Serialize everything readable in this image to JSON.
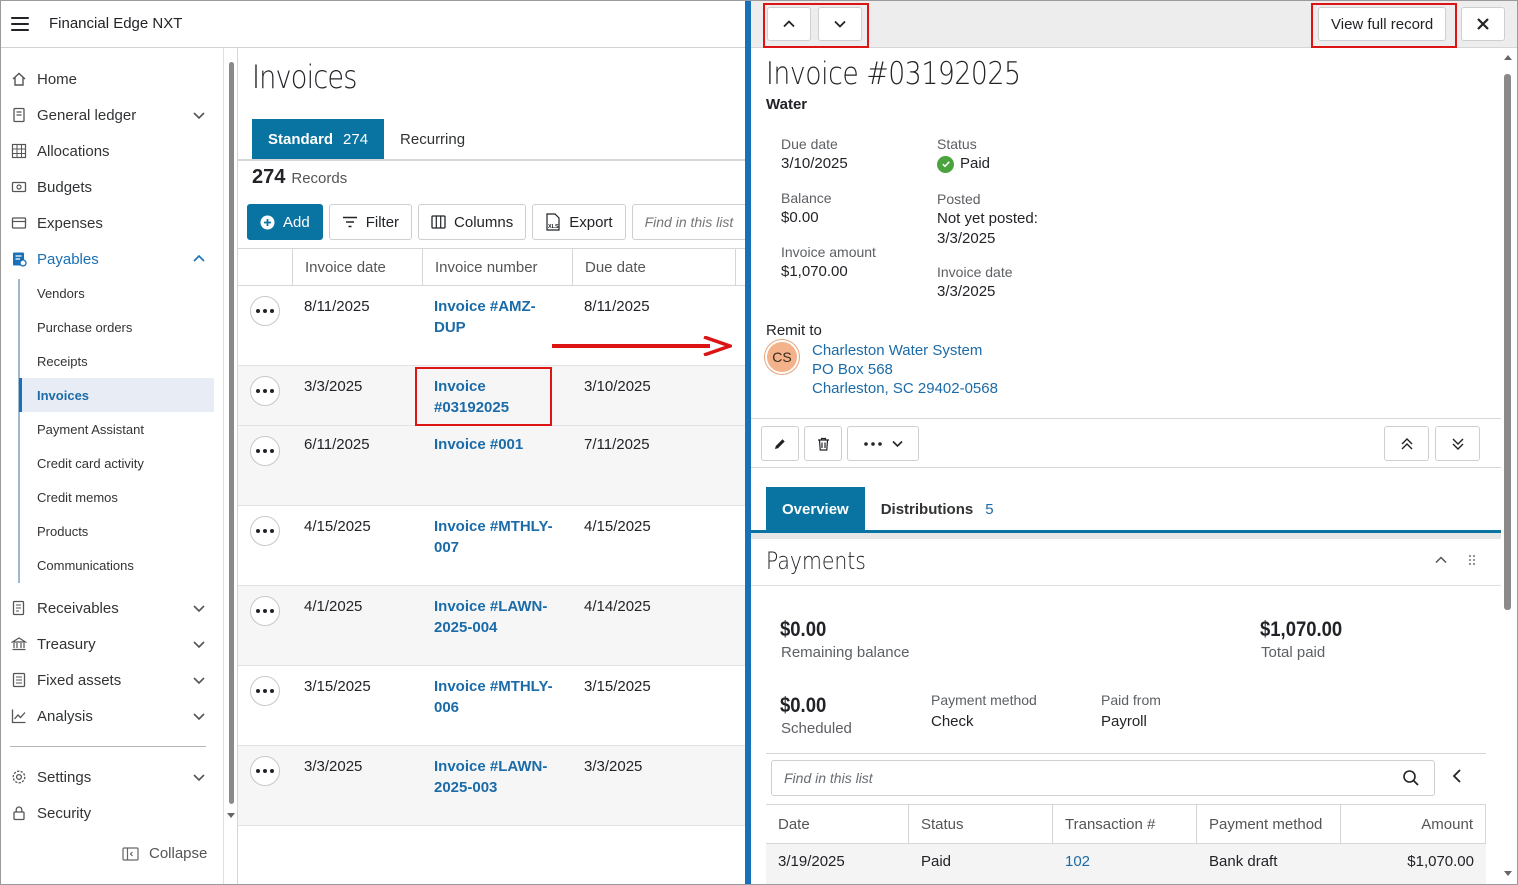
{
  "app": {
    "title": "Financial Edge NXT"
  },
  "sidebar": {
    "items": [
      {
        "label": "Home",
        "icon": "home-icon"
      },
      {
        "label": "General ledger",
        "icon": "ledger-icon",
        "expandable": true
      },
      {
        "label": "Allocations",
        "icon": "grid-icon"
      },
      {
        "label": "Budgets",
        "icon": "budget-icon"
      },
      {
        "label": "Expenses",
        "icon": "wallet-icon"
      },
      {
        "label": "Payables",
        "icon": "payables-icon",
        "expandable": true,
        "expanded": true,
        "active": true
      },
      {
        "label": "Receivables",
        "icon": "receivables-icon",
        "expandable": true
      },
      {
        "label": "Treasury",
        "icon": "bank-icon",
        "expandable": true
      },
      {
        "label": "Fixed assets",
        "icon": "assets-icon",
        "expandable": true
      },
      {
        "label": "Analysis",
        "icon": "analysis-icon",
        "expandable": true
      },
      {
        "label": "Settings",
        "icon": "gear-icon",
        "expandable": true
      },
      {
        "label": "Security",
        "icon": "lock-icon"
      }
    ],
    "payables_sub": [
      {
        "label": "Vendors"
      },
      {
        "label": "Purchase orders"
      },
      {
        "label": "Receipts"
      },
      {
        "label": "Invoices",
        "active": true
      },
      {
        "label": "Payment Assistant"
      },
      {
        "label": "Credit card activity"
      },
      {
        "label": "Credit memos"
      },
      {
        "label": "Products"
      },
      {
        "label": "Communications"
      }
    ],
    "collapse_label": "Collapse"
  },
  "list": {
    "title": "Invoices",
    "tabs": [
      {
        "label": "Standard",
        "count": "274",
        "active": true
      },
      {
        "label": "Recurring",
        "count": ""
      }
    ],
    "record_count": "274",
    "record_label": "Records",
    "toolbar": {
      "add": "Add",
      "filter": "Filter",
      "columns": "Columns",
      "export": "Export",
      "find_placeholder": "Find in this list"
    },
    "columns": [
      "Invoice date",
      "Invoice number",
      "Due date"
    ],
    "rows": [
      {
        "invoice_date": "8/11/2025",
        "invoice_number": "Invoice #AMZ-DUP",
        "due_date": "8/11/2025"
      },
      {
        "invoice_date": "3/3/2025",
        "invoice_number": "Invoice #03192025",
        "due_date": "3/10/2025"
      },
      {
        "invoice_date": "6/11/2025",
        "invoice_number": "Invoice #001",
        "due_date": "7/11/2025"
      },
      {
        "invoice_date": "4/15/2025",
        "invoice_number": "Invoice #MTHLY-007",
        "due_date": "4/15/2025"
      },
      {
        "invoice_date": "4/1/2025",
        "invoice_number": "Invoice #LAWN-2025-004",
        "due_date": "4/14/2025"
      },
      {
        "invoice_date": "3/15/2025",
        "invoice_number": "Invoice #MTHLY-006",
        "due_date": "3/15/2025"
      },
      {
        "invoice_date": "3/3/2025",
        "invoice_number": "Invoice #LAWN-2025-003",
        "due_date": "3/3/2025"
      }
    ]
  },
  "panel": {
    "view_full_record": "View full record",
    "invoice_title": "Invoice #03192025",
    "vendor_sub": "Water",
    "fields": {
      "due_date_label": "Due date",
      "due_date": "3/10/2025",
      "balance_label": "Balance",
      "balance": "$0.00",
      "invoice_amount_label": "Invoice amount",
      "invoice_amount": "$1,070.00",
      "status_label": "Status",
      "status": "Paid",
      "posted_label": "Posted",
      "posted_line1": "Not yet posted:",
      "posted_line2": "3/3/2025",
      "invoice_date_label": "Invoice date",
      "invoice_date": "3/3/2025"
    },
    "remit": {
      "label": "Remit to",
      "initials": "CS",
      "name": "Charleston Water System",
      "line1": "PO Box 568",
      "line2": "Charleston, SC 29402-0568"
    },
    "tabs": [
      {
        "label": "Overview",
        "count": "",
        "active": true
      },
      {
        "label": "Distributions",
        "count": "5"
      }
    ],
    "payments": {
      "title": "Payments",
      "remaining_balance": "$0.00",
      "remaining_balance_label": "Remaining balance",
      "total_paid": "$1,070.00",
      "total_paid_label": "Total paid",
      "scheduled": "$0.00",
      "scheduled_label": "Scheduled",
      "payment_method_label": "Payment method",
      "payment_method": "Check",
      "paid_from_label": "Paid from",
      "paid_from": "Payroll",
      "find_placeholder": "Find in this list",
      "columns": [
        "Date",
        "Status",
        "Transaction #",
        "Payment method",
        "Amount"
      ],
      "rows": [
        {
          "date": "3/19/2025",
          "status": "Paid",
          "transaction": "102",
          "method": "Bank draft",
          "amount": "$1,070.00"
        }
      ]
    }
  },
  "colors": {
    "accent": "#0974a1",
    "link": "#1b6ba8",
    "highlight": "#dc1414",
    "paid_green": "#4ba33e",
    "split_bar": "#1870b8"
  }
}
